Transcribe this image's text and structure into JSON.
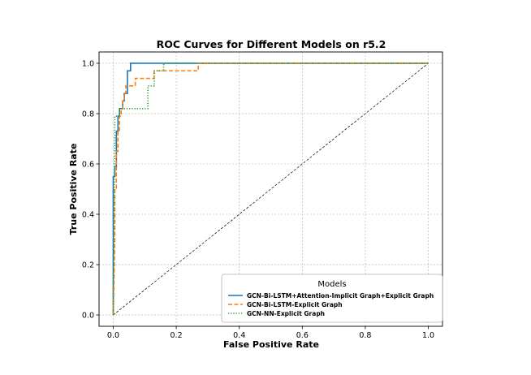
{
  "chart_data": {
    "type": "line",
    "title": "ROC Curves for Different Models on r5.2",
    "xlabel": "False Positive Rate",
    "ylabel": "True Positive Rate",
    "xlim": [
      -0.045,
      1.045
    ],
    "ylim": [
      -0.045,
      1.045
    ],
    "x_ticks": [
      0.0,
      0.2,
      0.4,
      0.6,
      0.8,
      1.0
    ],
    "y_ticks": [
      0.0,
      0.2,
      0.4,
      0.6,
      0.8,
      1.0
    ],
    "x_tick_labels": [
      "0.0",
      "0.2",
      "0.4",
      "0.6",
      "0.8",
      "1.0"
    ],
    "y_tick_labels": [
      "0.0",
      "0.2",
      "0.4",
      "0.6",
      "0.8",
      "1.0"
    ],
    "grid": true,
    "legend": {
      "title": "Models",
      "placement": "lower-right"
    },
    "series": [
      {
        "name": "GCN-Bi-LSTM+Attention-Implicit Graph+Explicit Graph",
        "color": "#1f77b4",
        "style": "solid",
        "x": [
          0,
          0,
          0.005,
          0.005,
          0.01,
          0.01,
          0.015,
          0.015,
          0.02,
          0.02,
          0.025,
          0.025,
          0.03,
          0.03,
          0.035,
          0.035,
          0.04,
          0.04,
          0.045,
          0.045,
          0.055,
          0.055,
          1.0
        ],
        "y": [
          0,
          0.55,
          0.55,
          0.59,
          0.59,
          0.73,
          0.73,
          0.79,
          0.79,
          0.82,
          0.82,
          0.82,
          0.82,
          0.85,
          0.85,
          0.88,
          0.88,
          0.88,
          0.88,
          0.97,
          0.97,
          1.0,
          1.0
        ]
      },
      {
        "name": "GCN-Bi-LSTM-Explicit Graph",
        "color": "#ff7f0e",
        "style": "dashed",
        "x": [
          0,
          0.005,
          0.005,
          0.01,
          0.01,
          0.015,
          0.015,
          0.02,
          0.02,
          0.025,
          0.025,
          0.03,
          0.03,
          0.035,
          0.035,
          0.04,
          0.04,
          0.07,
          0.07,
          0.13,
          0.13,
          0.27,
          0.27,
          1.0
        ],
        "y": [
          0,
          0.3,
          0.5,
          0.5,
          0.65,
          0.65,
          0.73,
          0.73,
          0.79,
          0.79,
          0.82,
          0.82,
          0.85,
          0.85,
          0.88,
          0.88,
          0.91,
          0.91,
          0.94,
          0.94,
          0.97,
          0.97,
          1.0,
          1.0
        ]
      },
      {
        "name": "GCN-NN-Explicit Graph",
        "color": "#2ca02c",
        "style": "dotted",
        "x": [
          0,
          0.005,
          0.005,
          0.01,
          0.01,
          0.02,
          0.02,
          0.11,
          0.11,
          0.13,
          0.13,
          0.16,
          0.16,
          1.0
        ],
        "y": [
          0,
          0.68,
          0.79,
          0.79,
          0.79,
          0.79,
          0.82,
          0.82,
          0.91,
          0.91,
          0.97,
          0.97,
          1.0,
          1.0
        ]
      }
    ],
    "reference_line": {
      "x": [
        0,
        1
      ],
      "y": [
        0,
        1
      ],
      "color": "#000000",
      "style": "dashed"
    }
  }
}
